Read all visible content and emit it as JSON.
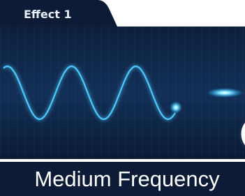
{
  "tab": {
    "label": "Effect 1"
  },
  "caption": {
    "text": "Medium Frequency"
  }
}
